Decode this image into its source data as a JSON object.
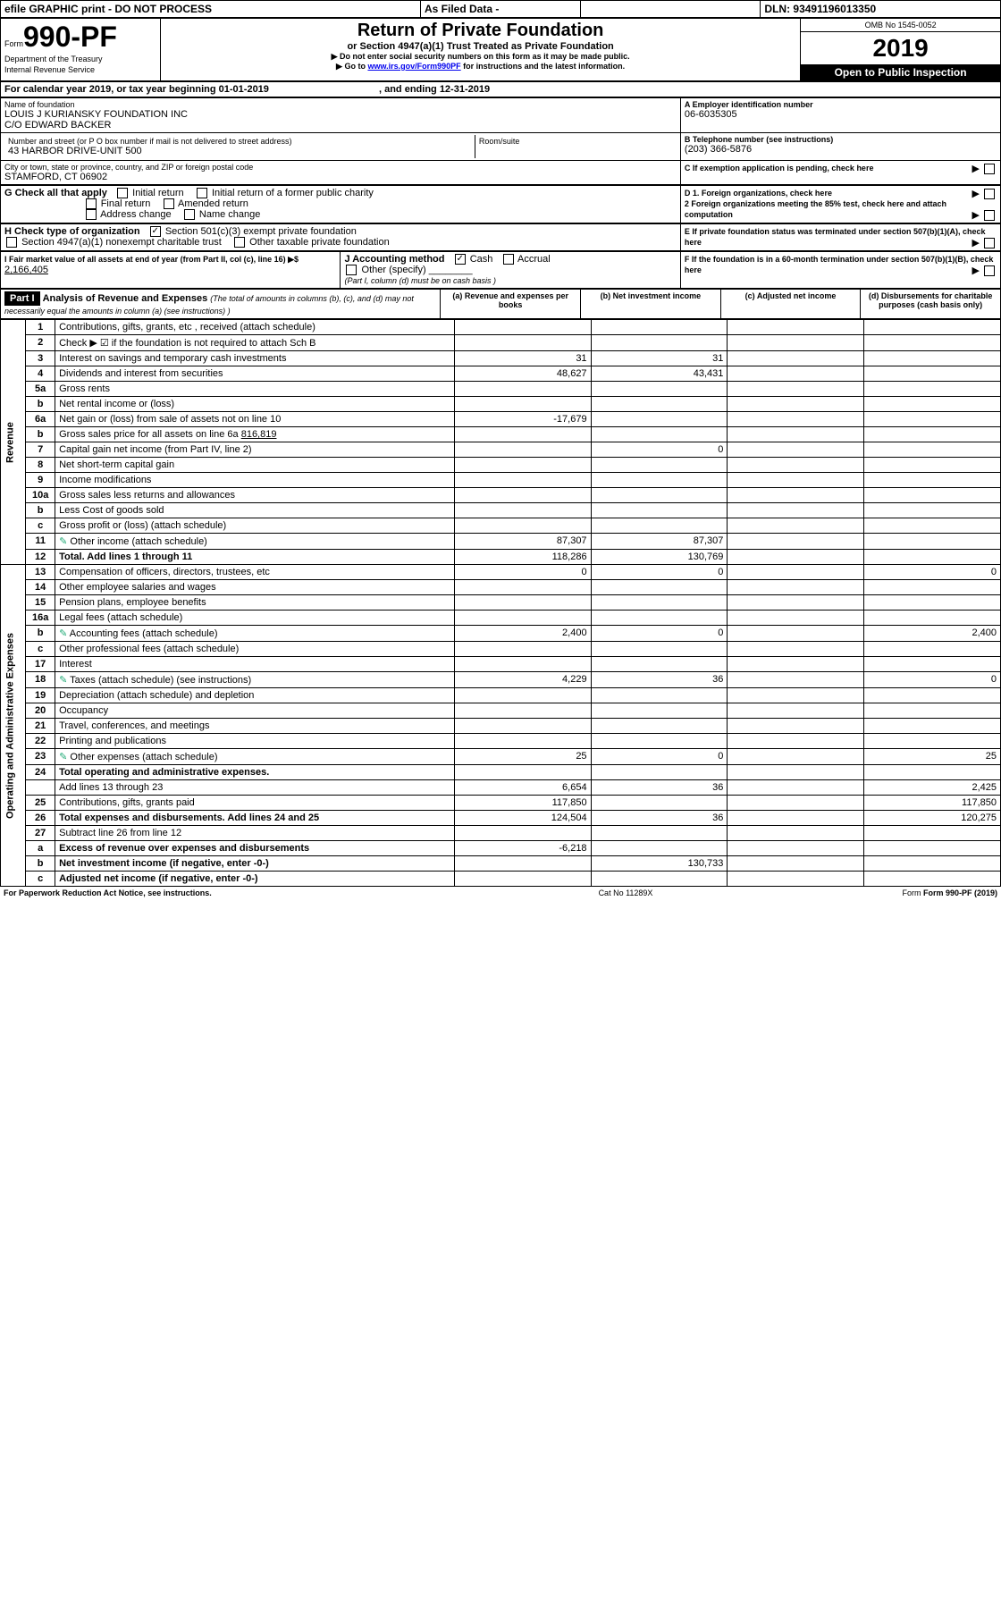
{
  "top": {
    "efile": "efile GRAPHIC print - DO NOT PROCESS",
    "asfiled": "As Filed Data -",
    "dln": "DLN: 93491196013350"
  },
  "header": {
    "form_prefix": "Form",
    "form_num": "990-PF",
    "dept": "Department of the Treasury",
    "irs": "Internal Revenue Service",
    "title": "Return of Private Foundation",
    "subtitle": "or Section 4947(a)(1) Trust Treated as Private Foundation",
    "warn1": "▶ Do not enter social security numbers on this form as it may be made public.",
    "warn2_pre": "▶ Go to ",
    "warn2_link": "www.irs.gov/Form990PF",
    "warn2_post": " for instructions and the latest information.",
    "omb": "OMB No 1545-0052",
    "year": "2019",
    "inspect": "Open to Public Inspection"
  },
  "cal": {
    "line_a": "For calendar year 2019, or tax year beginning 01-01-2019",
    "line_b": ", and ending 12-31-2019"
  },
  "name": {
    "label": "Name of foundation",
    "val1": "LOUIS J KURIANSKY FOUNDATION INC",
    "val2": "C/O EDWARD BACKER"
  },
  "ein": {
    "label": "A Employer identification number",
    "val": "06-6035305"
  },
  "addr": {
    "label": "Number and street (or P O  box number if mail is not delivered to street address)",
    "room": "Room/suite",
    "val": "43 HARBOR DRIVE-UNIT 500"
  },
  "tel": {
    "label": "B Telephone number (see instructions)",
    "val": "(203) 366-5876"
  },
  "city": {
    "label": "City or town, state or province, country, and ZIP or foreign postal code",
    "val": "STAMFORD, CT  06902"
  },
  "c": "C If exemption application is pending, check here",
  "g": {
    "label": "G Check all that apply",
    "o1": "Initial return",
    "o2": "Initial return of a former public charity",
    "o3": "Final return",
    "o4": "Amended return",
    "o5": "Address change",
    "o6": "Name change"
  },
  "d": {
    "d1": "D 1. Foreign organizations, check here",
    "d2": "2 Foreign organizations meeting the 85% test, check here and attach computation"
  },
  "h": {
    "label": "H Check type of organization",
    "o1": "Section 501(c)(3) exempt private foundation",
    "o2": "Section 4947(a)(1) nonexempt charitable trust",
    "o3": "Other taxable private foundation"
  },
  "e": "E  If private foundation status was terminated under section 507(b)(1)(A), check here",
  "i": {
    "label": "I Fair market value of all assets at end of year (from Part II, col  (c), line 16) ▶$",
    "val": "2,166,405"
  },
  "j": {
    "label": "J Accounting method",
    "o1": "Cash",
    "o2": "Accrual",
    "o3": "Other (specify)",
    "note": "(Part I, column (d) must be on cash basis )"
  },
  "f": "F  If the foundation is in a 60-month termination under section 507(b)(1)(B), check here",
  "part1": {
    "label": "Part I",
    "title": "Analysis of Revenue and Expenses",
    "sub": "(The total of amounts in columns (b), (c), and (d) may not necessarily equal the amounts in column (a) (see instructions) )",
    "colA": "(a) Revenue and expenses per books",
    "colB": "(b) Net investment income",
    "colC": "(c) Adjusted net income",
    "colD": "(d) Disbursements for charitable purposes (cash basis only)"
  },
  "sideRev": "Revenue",
  "sideExp": "Operating and Administrative Expenses",
  "rows": {
    "r1": {
      "n": "1",
      "d": "Contributions, gifts, grants, etc , received (attach schedule)"
    },
    "r2": {
      "n": "2",
      "d": "Check ▶ ☑ if the foundation is not required to attach Sch  B"
    },
    "r3": {
      "n": "3",
      "d": "Interest on savings and temporary cash investments",
      "a": "31",
      "b": "31"
    },
    "r4": {
      "n": "4",
      "d": "Dividends and interest from securities",
      "a": "48,627",
      "b": "43,431"
    },
    "r5a": {
      "n": "5a",
      "d": "Gross rents"
    },
    "r5b": {
      "n": "b",
      "d": "Net rental income or (loss)"
    },
    "r6a": {
      "n": "6a",
      "d": "Net gain or (loss) from sale of assets not on line 10",
      "a": "-17,679"
    },
    "r6b": {
      "n": "b",
      "d": "Gross sales price for all assets on line 6a",
      "inline": "816,819"
    },
    "r7": {
      "n": "7",
      "d": "Capital gain net income (from Part IV, line 2)",
      "b": "0"
    },
    "r8": {
      "n": "8",
      "d": "Net short-term capital gain"
    },
    "r9": {
      "n": "9",
      "d": "Income modifications"
    },
    "r10a": {
      "n": "10a",
      "d": "Gross sales less returns and allowances"
    },
    "r10b": {
      "n": "b",
      "d": "Less  Cost of goods sold"
    },
    "r10c": {
      "n": "c",
      "d": "Gross profit or (loss) (attach schedule)"
    },
    "r11": {
      "n": "11",
      "d": "Other income (attach schedule)",
      "icon": "1",
      "a": "87,307",
      "b": "87,307"
    },
    "r12": {
      "n": "12",
      "d": "Total. Add lines 1 through 11",
      "bold": "1",
      "a": "118,286",
      "b": "130,769"
    },
    "r13": {
      "n": "13",
      "d": "Compensation of officers, directors, trustees, etc",
      "a": "0",
      "b": "0",
      "dd": "0"
    },
    "r14": {
      "n": "14",
      "d": "Other employee salaries and wages"
    },
    "r15": {
      "n": "15",
      "d": "Pension plans, employee benefits"
    },
    "r16a": {
      "n": "16a",
      "d": "Legal fees (attach schedule)"
    },
    "r16b": {
      "n": "b",
      "d": "Accounting fees (attach schedule)",
      "icon": "1",
      "a": "2,400",
      "b": "0",
      "dd": "2,400"
    },
    "r16c": {
      "n": "c",
      "d": "Other professional fees (attach schedule)"
    },
    "r17": {
      "n": "17",
      "d": "Interest"
    },
    "r18": {
      "n": "18",
      "d": "Taxes (attach schedule) (see instructions)",
      "icon": "1",
      "a": "4,229",
      "b": "36",
      "dd": "0"
    },
    "r19": {
      "n": "19",
      "d": "Depreciation (attach schedule) and depletion"
    },
    "r20": {
      "n": "20",
      "d": "Occupancy"
    },
    "r21": {
      "n": "21",
      "d": "Travel, conferences, and meetings"
    },
    "r22": {
      "n": "22",
      "d": "Printing and publications"
    },
    "r23": {
      "n": "23",
      "d": "Other expenses (attach schedule)",
      "icon": "1",
      "a": "25",
      "b": "0",
      "dd": "25"
    },
    "r24": {
      "n": "24",
      "d": "Total operating and administrative expenses.",
      "bold": "1"
    },
    "r24b": {
      "n": "",
      "d": "Add lines 13 through 23",
      "a": "6,654",
      "b": "36",
      "dd": "2,425"
    },
    "r25": {
      "n": "25",
      "d": "Contributions, gifts, grants paid",
      "a": "117,850",
      "dd": "117,850"
    },
    "r26": {
      "n": "26",
      "d": "Total expenses and disbursements. Add lines 24 and 25",
      "bold": "1",
      "a": "124,504",
      "b": "36",
      "dd": "120,275"
    },
    "r27": {
      "n": "27",
      "d": "Subtract line 26 from line 12"
    },
    "r27a": {
      "n": "a",
      "d": "Excess of revenue over expenses and disbursements",
      "bold": "1",
      "a": "-6,218"
    },
    "r27b": {
      "n": "b",
      "d": "Net investment income (if negative, enter -0-)",
      "bold": "1",
      "b": "130,733"
    },
    "r27c": {
      "n": "c",
      "d": "Adjusted net income (if negative, enter -0-)",
      "bold": "1"
    }
  },
  "footer": {
    "left": "For Paperwork Reduction Act Notice, see instructions.",
    "mid": "Cat  No  11289X",
    "right": "Form 990-PF (2019)"
  },
  "colors": {
    "black": "#000000",
    "white": "#ffffff",
    "link": "#0000ee"
  }
}
